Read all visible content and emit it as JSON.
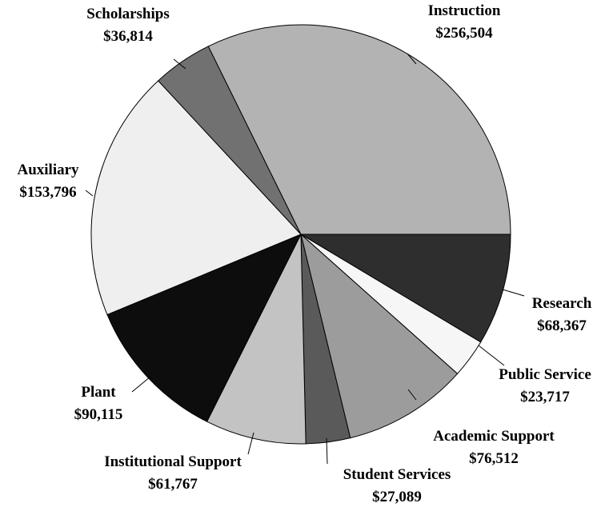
{
  "chart_data": {
    "type": "pie",
    "title": "",
    "start": "3 o'clock, clockwise",
    "slices": [
      {
        "label": "Research",
        "value_label": "$68,367",
        "value": 68367,
        "color": "#2e2e2e"
      },
      {
        "label": "Public Service",
        "value_label": "$23,717",
        "value": 23717,
        "color": "#f6f6f6"
      },
      {
        "label": "Academic Support",
        "value_label": "$76,512",
        "value": 76512,
        "color": "#9c9c9c"
      },
      {
        "label": "Student Services",
        "value_label": "$27,089",
        "value": 27089,
        "color": "#5a5a5a"
      },
      {
        "label": "Institutional Support",
        "value_label": "$61,767",
        "value": 61767,
        "color": "#c3c3c3"
      },
      {
        "label": "Plant",
        "value_label": "$90,115",
        "value": 90115,
        "color": "#0d0d0d"
      },
      {
        "label": "Auxiliary",
        "value_label": "$153,796",
        "value": 153796,
        "color": "#efefef"
      },
      {
        "label": "Scholarships",
        "value_label": "$36,814",
        "value": 36814,
        "color": "#717171"
      },
      {
        "label": "Instruction",
        "value_label": "$256,504",
        "value": 256504,
        "color": "#b3b3b3"
      }
    ]
  }
}
